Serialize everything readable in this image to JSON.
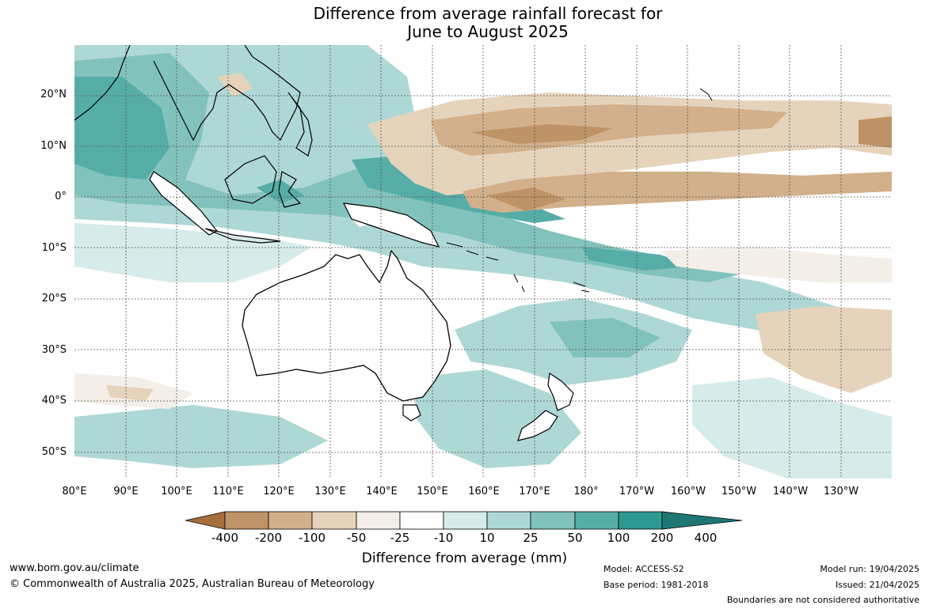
{
  "title_line1": "Difference from average rainfall forecast for",
  "title_line2": "June to August 2025",
  "lat_labels": [
    "20°N",
    "10°N",
    "0°",
    "10°S",
    "20°S",
    "30°S",
    "40°S",
    "50°S"
  ],
  "lon_labels": [
    "80°E",
    "90°E",
    "100°E",
    "110°E",
    "120°E",
    "130°E",
    "140°E",
    "150°E",
    "160°E",
    "170°E",
    "180°",
    "170°W",
    "160°W",
    "150°W",
    "140°W",
    "130°W"
  ],
  "legend": {
    "ticks": [
      "-400",
      "-200",
      "-100",
      "-50",
      "-25",
      "-10",
      "10",
      "25",
      "50",
      "100",
      "200",
      "400"
    ],
    "colors": [
      "#a56f3c",
      "#be9366",
      "#d2b08b",
      "#e6d3bb",
      "#f3eee7",
      "#ffffff",
      "#d7ebea",
      "#aed8d5",
      "#82c2bd",
      "#56ada8",
      "#2e9893",
      "#1d7874"
    ],
    "title": "Difference from average (mm)"
  },
  "footer": {
    "url": "www.bom.gov.au/climate",
    "copyright": "© Commonwealth of Australia 2025, Australian Bureau of Meteorology",
    "model": "Model: ACCESS-S2",
    "base_period": "Base period: 1981-2018",
    "model_run": "Model run: 19/04/2025",
    "issued": "Issued: 21/04/2025",
    "boundaries": "Boundaries are not considered authoritative"
  },
  "map_layers": {
    "wet_color_1": "#d7ebea",
    "wet_color_2": "#aed8d5",
    "wet_color_3": "#82c2bd",
    "wet_color_4": "#56ada8",
    "dry_color_1": "#f3eee7",
    "dry_color_2": "#e6d3bb",
    "dry_color_3": "#d2b08b",
    "dry_color_4": "#be9366",
    "land_fill": "#ffffff",
    "coast_stroke": "#000000",
    "grid_stroke": "#555555"
  }
}
